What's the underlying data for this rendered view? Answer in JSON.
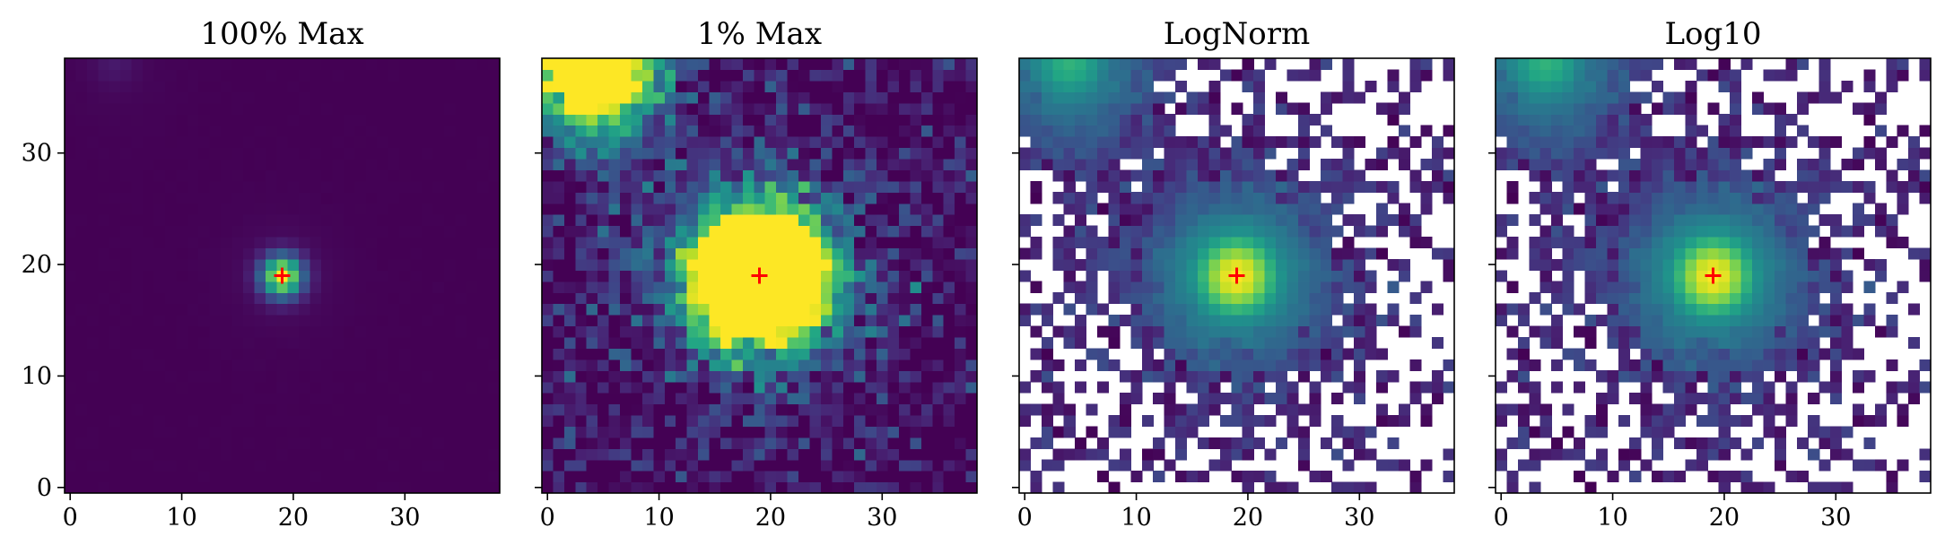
{
  "chart_data": [
    {
      "type": "heatmap",
      "title": "100% Max",
      "norm": "linear, clipped at 100% of max",
      "colormap": "viridis",
      "grid_size": [
        39,
        39
      ],
      "xlim": [
        -0.5,
        38.5
      ],
      "ylim": [
        -0.5,
        38.5
      ],
      "xticks": [
        0,
        10,
        20,
        30
      ],
      "yticks": [
        0,
        10,
        20,
        30
      ],
      "ytick_labels_shown": true,
      "bad_pixels_white": false,
      "center_marker": {
        "x": 19,
        "y": 19,
        "color": "#ff0000",
        "symbol": "+"
      }
    },
    {
      "type": "heatmap",
      "title": "1% Max",
      "norm": "linear, clipped at 1% of max",
      "colormap": "viridis",
      "grid_size": [
        39,
        39
      ],
      "xlim": [
        -0.5,
        38.5
      ],
      "ylim": [
        -0.5,
        38.5
      ],
      "xticks": [
        0,
        10,
        20,
        30
      ],
      "yticks": [
        0,
        10,
        20,
        30
      ],
      "ytick_labels_shown": false,
      "bad_pixels_white": false,
      "center_marker": {
        "x": 19,
        "y": 19,
        "color": "#ff0000",
        "symbol": "+"
      }
    },
    {
      "type": "heatmap",
      "title": "LogNorm",
      "norm": "log",
      "colormap": "viridis",
      "grid_size": [
        39,
        39
      ],
      "xlim": [
        -0.5,
        38.5
      ],
      "ylim": [
        -0.5,
        38.5
      ],
      "xticks": [
        0,
        10,
        20,
        30
      ],
      "yticks": [
        0,
        10,
        20,
        30
      ],
      "ytick_labels_shown": false,
      "bad_pixels_white": true,
      "center_marker": {
        "x": 19,
        "y": 19,
        "color": "#ff0000",
        "symbol": "+"
      }
    },
    {
      "type": "heatmap",
      "title": "Log10",
      "norm": "log10",
      "colormap": "viridis",
      "grid_size": [
        39,
        39
      ],
      "xlim": [
        -0.5,
        38.5
      ],
      "ylim": [
        -0.5,
        38.5
      ],
      "xticks": [
        0,
        10,
        20,
        30
      ],
      "yticks": [
        0,
        10,
        20,
        30
      ],
      "ytick_labels_shown": false,
      "bad_pixels_white": true,
      "center_marker": {
        "x": 19,
        "y": 19,
        "color": "#ff0000",
        "symbol": "+"
      }
    }
  ]
}
